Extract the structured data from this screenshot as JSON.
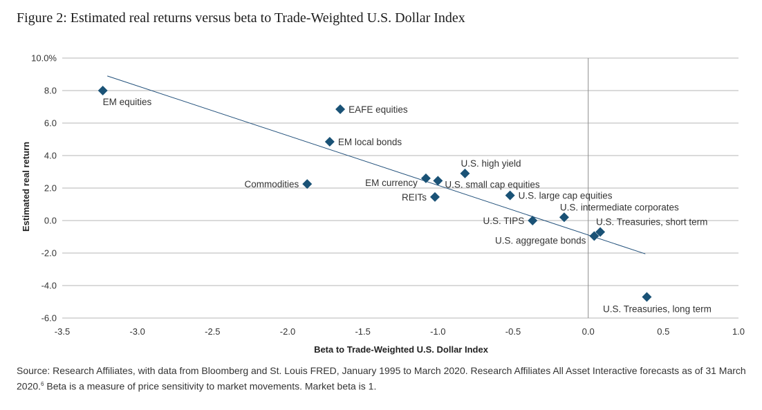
{
  "figure": {
    "title": "Figure 2: Estimated real returns versus beta to Trade-Weighted U.S. Dollar Index",
    "source_text": "Source: Research Affiliates, with data from Bloomberg and St. Louis FRED, January 1995 to March 2020. Research Affiliates All Asset Interactive forecasts as of 31 March 2020.",
    "source_footnote_mark": "6",
    "source_text_2": " Beta is a measure of price sensitivity to market movements. Market beta is 1."
  },
  "chart_data": {
    "type": "scatter",
    "xlabel": "Beta to Trade-Weighted U.S. Dollar Index",
    "ylabel": "Estimated real return",
    "xlim": [
      -3.5,
      1.0
    ],
    "ylim": [
      -6.0,
      10.0
    ],
    "x_ticks": [
      -3.5,
      -3.0,
      -2.5,
      -2.0,
      -1.5,
      -1.0,
      -0.5,
      0.0,
      0.5,
      1.0
    ],
    "x_tick_labels": [
      "-3.5",
      "-3.0",
      "-2.5",
      "-2.0",
      "-1.5",
      "-1.0",
      "-0.5",
      "0.0",
      "0.5",
      "1.0"
    ],
    "y_ticks": [
      10,
      8,
      6,
      4,
      2,
      0,
      -2,
      -4,
      -6
    ],
    "y_tick_labels": [
      "10.0%",
      "8.0",
      "6.0",
      "4.0",
      "2.0",
      "0.0",
      "-2.0",
      "-4.0",
      "-6.0"
    ],
    "grid": "horizontal",
    "marker_color": "#1a5276",
    "trendline": {
      "x": [
        -3.2,
        0.38
      ],
      "y": [
        8.9,
        -2.05
      ]
    },
    "points": [
      {
        "label": "EM equities",
        "x": -3.23,
        "y": 8.0,
        "label_pos": "below-right"
      },
      {
        "label": "EAFE equities",
        "x": -1.65,
        "y": 6.85,
        "label_pos": "right"
      },
      {
        "label": "EM local bonds",
        "x": -1.72,
        "y": 4.85,
        "label_pos": "right"
      },
      {
        "label": "Commodities",
        "x": -1.87,
        "y": 2.25,
        "label_pos": "left"
      },
      {
        "label": "EM currency",
        "x": -1.08,
        "y": 2.6,
        "label_pos": "left-below"
      },
      {
        "label": "U.S. small cap equities",
        "x": -1.0,
        "y": 2.45,
        "label_pos": "right-below"
      },
      {
        "label": "U.S. high yield",
        "x": -0.82,
        "y": 2.9,
        "label_pos": "above-right"
      },
      {
        "label": "REITs",
        "x": -1.02,
        "y": 1.45,
        "label_pos": "left"
      },
      {
        "label": "U.S. large cap equities",
        "x": -0.52,
        "y": 1.55,
        "label_pos": "right"
      },
      {
        "label": "U.S. intermediate corporates",
        "x": -0.16,
        "y": 0.2,
        "label_pos": "above-right"
      },
      {
        "label": "U.S. TIPS",
        "x": -0.37,
        "y": 0.0,
        "label_pos": "left"
      },
      {
        "label": "U.S. Treasuries, short term",
        "x": 0.08,
        "y": -0.7,
        "label_pos": "above-right"
      },
      {
        "label": "U.S. aggregate bonds",
        "x": 0.04,
        "y": -0.95,
        "label_pos": "left-below"
      },
      {
        "label": "U.S. Treasuries, long term",
        "x": 0.39,
        "y": -4.7,
        "label_pos": "below"
      }
    ]
  }
}
